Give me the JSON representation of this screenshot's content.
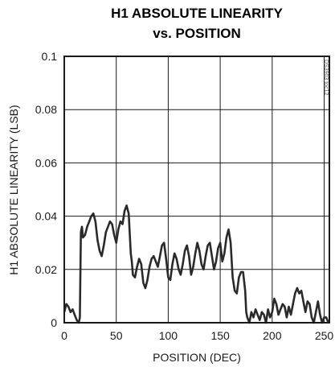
{
  "chart_data": {
    "type": "line",
    "title_line1": "H1 ABSOLUTE LINEARITY",
    "title_line2": "vs. POSITION",
    "xlabel": "POSITION (DEC)",
    "ylabel": "H1 ABSOLUTE LINEARITY (LSB)",
    "side_note": "DS3903 toc12",
    "xlim": [
      0,
      255
    ],
    "ylim": [
      0,
      0.1
    ],
    "grid": true,
    "x_ticks": [
      0,
      50,
      100,
      150,
      200,
      250
    ],
    "x_tick_labels": [
      "0",
      "50",
      "100",
      "150",
      "200",
      "250"
    ],
    "y_ticks": [
      0,
      0.02,
      0.04,
      0.06,
      0.08,
      0.1
    ],
    "y_tick_labels": [
      "0",
      "0.02",
      "0.04",
      "0.06",
      "0.08",
      "0.1"
    ],
    "series": [
      {
        "x": [
          0,
          2,
          4,
          6,
          8,
          10,
          12,
          14,
          15,
          16,
          17,
          18,
          20,
          22,
          24,
          26,
          28,
          30,
          32,
          34,
          36,
          38,
          40,
          42,
          44,
          46,
          48,
          50,
          52,
          54,
          56,
          58,
          60,
          62,
          64,
          65,
          66,
          68,
          70,
          72,
          74,
          76,
          78,
          80,
          82,
          84,
          86,
          88,
          90,
          92,
          94,
          96,
          98,
          100,
          102,
          104,
          106,
          108,
          110,
          112,
          114,
          116,
          118,
          120,
          122,
          124,
          126,
          128,
          130,
          132,
          134,
          136,
          138,
          140,
          142,
          144,
          146,
          148,
          150,
          152,
          154,
          156,
          158,
          160,
          162,
          164,
          166,
          168,
          170,
          172,
          174,
          175,
          176,
          178,
          180,
          182,
          184,
          186,
          188,
          190,
          192,
          194,
          196,
          198,
          200,
          202,
          204,
          206,
          208,
          210,
          212,
          214,
          216,
          218,
          220,
          222,
          224,
          226,
          228,
          230,
          232,
          234,
          236,
          238,
          240,
          242,
          244,
          246,
          248,
          250,
          252,
          254
        ],
        "y": [
          0.004,
          0.007,
          0.006,
          0.004,
          0.005,
          0.003,
          0.001,
          0.0,
          0.002,
          0.034,
          0.036,
          0.032,
          0.033,
          0.036,
          0.038,
          0.04,
          0.041,
          0.038,
          0.031,
          0.027,
          0.025,
          0.029,
          0.034,
          0.036,
          0.038,
          0.037,
          0.033,
          0.03,
          0.035,
          0.038,
          0.037,
          0.042,
          0.044,
          0.041,
          0.026,
          0.023,
          0.018,
          0.017,
          0.021,
          0.024,
          0.022,
          0.015,
          0.013,
          0.016,
          0.021,
          0.024,
          0.025,
          0.023,
          0.021,
          0.025,
          0.029,
          0.03,
          0.024,
          0.017,
          0.016,
          0.022,
          0.026,
          0.024,
          0.02,
          0.018,
          0.022,
          0.027,
          0.029,
          0.025,
          0.018,
          0.021,
          0.026,
          0.03,
          0.027,
          0.022,
          0.02,
          0.025,
          0.029,
          0.03,
          0.025,
          0.02,
          0.023,
          0.028,
          0.03,
          0.023,
          0.026,
          0.032,
          0.035,
          0.03,
          0.017,
          0.012,
          0.011,
          0.017,
          0.019,
          0.019,
          0.012,
          0.004,
          0.002,
          0.0,
          0.004,
          0.002,
          0.005,
          0.003,
          0.001,
          0.004,
          0.003,
          0.0,
          0.005,
          0.002,
          0.004,
          0.009,
          0.007,
          0.003,
          0.005,
          0.007,
          0.006,
          0.002,
          0.006,
          0.003,
          0.007,
          0.011,
          0.013,
          0.011,
          0.012,
          0.008,
          0.004,
          0.008,
          0.007,
          0.002,
          0.0,
          0.004,
          0.008,
          0.003,
          0.0,
          0.002,
          0.002,
          0.0
        ]
      }
    ]
  }
}
